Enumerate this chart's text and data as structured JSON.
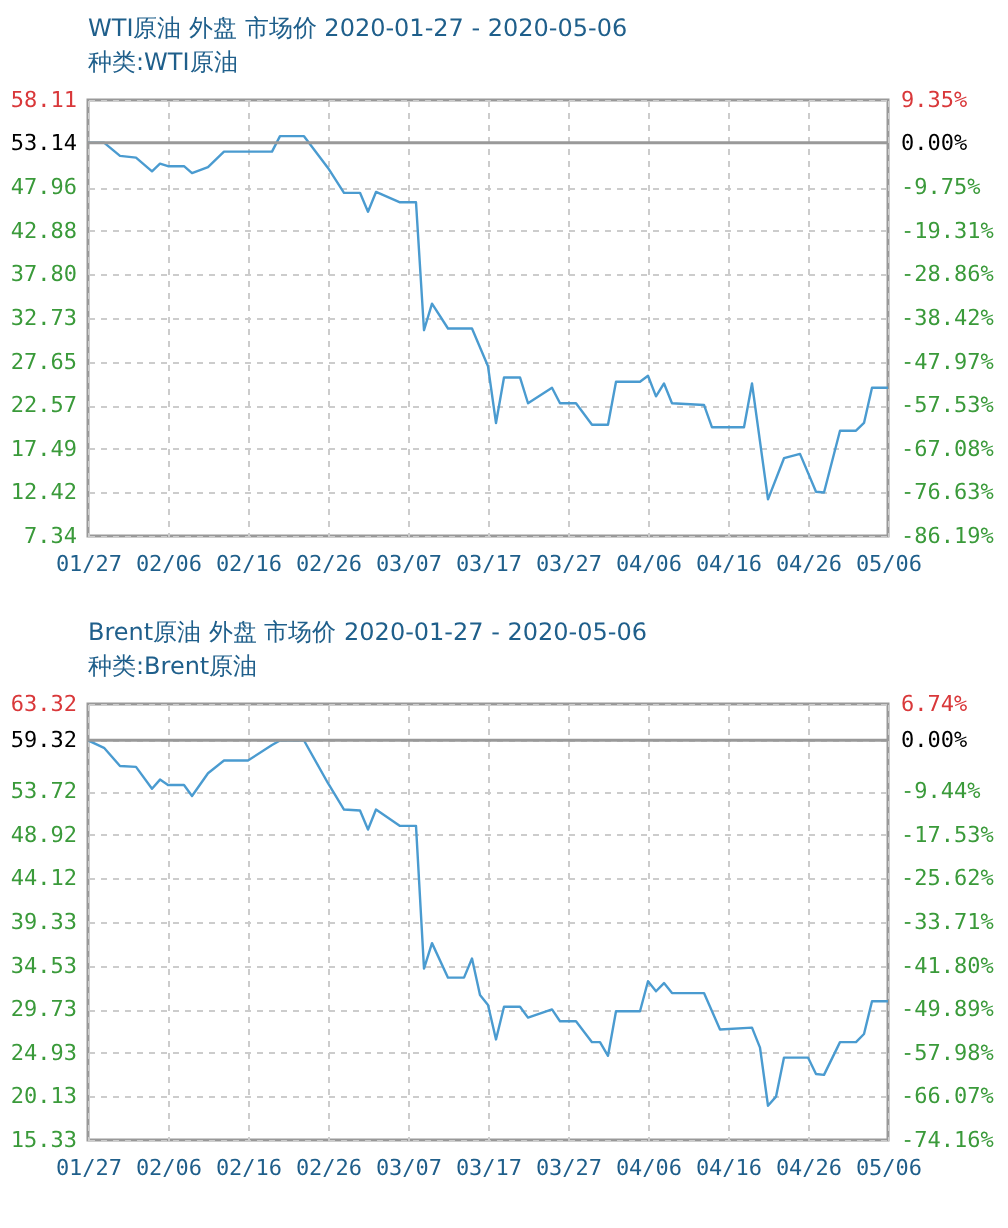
{
  "chart_data": [
    {
      "type": "line",
      "title": "WTI原油 外盘 市场价 2020-01-27 - 2020-05-06",
      "subtitle": "种类:WTI原油",
      "x": [
        "2020-01-27",
        "2020-01-29",
        "2020-01-31",
        "2020-02-02",
        "2020-02-04",
        "2020-02-05",
        "2020-02-06",
        "2020-02-08",
        "2020-02-09",
        "2020-02-11",
        "2020-02-13",
        "2020-02-19",
        "2020-02-20",
        "2020-02-23",
        "2020-02-26",
        "2020-02-28",
        "2020-03-01",
        "2020-03-02",
        "2020-03-03",
        "2020-03-06",
        "2020-03-08",
        "2020-03-09",
        "2020-03-10",
        "2020-03-12",
        "2020-03-15",
        "2020-03-17",
        "2020-03-18",
        "2020-03-19",
        "2020-03-21",
        "2020-03-22",
        "2020-03-25",
        "2020-03-26",
        "2020-03-28",
        "2020-03-30",
        "2020-04-01",
        "2020-04-02",
        "2020-04-05",
        "2020-04-06",
        "2020-04-07",
        "2020-04-08",
        "2020-04-09",
        "2020-04-13",
        "2020-04-14",
        "2020-04-18",
        "2020-04-19",
        "2020-04-21",
        "2020-04-23",
        "2020-04-25",
        "2020-04-27",
        "2020-04-28",
        "2020-04-30",
        "2020-05-02",
        "2020-05-03",
        "2020-05-04",
        "2020-05-06"
      ],
      "series": [
        {
          "color": "#4a9bd0",
          "values": [
            53.14,
            53.14,
            51.6,
            51.4,
            49.8,
            50.7,
            50.4,
            50.4,
            49.6,
            50.3,
            52.1,
            52.1,
            53.9,
            53.9,
            50.2,
            47.3,
            47.3,
            45.1,
            47.4,
            46.2,
            46.2,
            31.3,
            34.4,
            31.5,
            31.5,
            27.1,
            20.5,
            25.8,
            25.8,
            22.8,
            24.6,
            22.8,
            22.8,
            20.3,
            20.3,
            25.3,
            25.3,
            26.0,
            23.6,
            25.1,
            22.8,
            22.6,
            20.0,
            20.0,
            25.1,
            11.6,
            16.4,
            16.9,
            12.5,
            12.4,
            19.6,
            19.6,
            20.5,
            24.6,
            24.6
          ]
        }
      ],
      "xlim": [
        "2020-01-27",
        "2020-05-06"
      ],
      "xticks": [
        {
          "value": "2020-01-27",
          "label": "01/27"
        },
        {
          "value": "2020-02-06",
          "label": "02/06"
        },
        {
          "value": "2020-02-16",
          "label": "02/16"
        },
        {
          "value": "2020-02-26",
          "label": "02/26"
        },
        {
          "value": "2020-03-07",
          "label": "03/07"
        },
        {
          "value": "2020-03-17",
          "label": "03/17"
        },
        {
          "value": "2020-03-27",
          "label": "03/27"
        },
        {
          "value": "2020-04-06",
          "label": "04/06"
        },
        {
          "value": "2020-04-16",
          "label": "04/16"
        },
        {
          "value": "2020-04-26",
          "label": "04/26"
        },
        {
          "value": "2020-05-06",
          "label": "05/06"
        }
      ],
      "ylim": [
        7.34,
        58.11
      ],
      "yticks": [
        7.34,
        12.42,
        17.49,
        22.57,
        27.65,
        32.73,
        {
          "value": 37.8,
          "label": "37.80"
        },
        42.88,
        47.96,
        53.14,
        58.11
      ],
      "y2lim": [
        -86.19,
        9.35
      ],
      "y2ticks": [
        {
          "value": -86.19,
          "label": "-86.19%"
        },
        {
          "value": -76.63,
          "label": "-76.63%"
        },
        {
          "value": -67.08,
          "label": "-67.08%"
        },
        {
          "value": -57.53,
          "label": "-57.53%"
        },
        {
          "value": -47.97,
          "label": "-47.97%"
        },
        {
          "value": -38.42,
          "label": "-38.42%"
        },
        {
          "value": -28.86,
          "label": "-28.86%"
        },
        {
          "value": -19.31,
          "label": "-19.31%"
        },
        {
          "value": -9.75,
          "label": "-9.75%"
        },
        {
          "value": 0,
          "label": "0.00%"
        },
        {
          "value": 9.35,
          "label": "9.35%"
        }
      ],
      "ref_lines": [
        {
          "axis": "y",
          "value": 53.14,
          "color": "#999999"
        }
      ],
      "grid": true,
      "legend": false
    },
    {
      "type": "line",
      "title": "Brent原油 外盘 市场价 2020-01-27 - 2020-05-06",
      "subtitle": "种类:Brent原油",
      "x": [
        "2020-01-27",
        "2020-01-29",
        "2020-01-31",
        "2020-02-02",
        "2020-02-04",
        "2020-02-05",
        "2020-02-06",
        "2020-02-08",
        "2020-02-09",
        "2020-02-11",
        "2020-02-13",
        "2020-02-16",
        "2020-02-19",
        "2020-02-20",
        "2020-02-23",
        "2020-02-26",
        "2020-02-28",
        "2020-03-01",
        "2020-03-02",
        "2020-03-03",
        "2020-03-06",
        "2020-03-08",
        "2020-03-09",
        "2020-03-10",
        "2020-03-12",
        "2020-03-14",
        "2020-03-15",
        "2020-03-16",
        "2020-03-17",
        "2020-03-18",
        "2020-03-19",
        "2020-03-21",
        "2020-03-22",
        "2020-03-25",
        "2020-03-26",
        "2020-03-28",
        "2020-03-30",
        "2020-03-31",
        "2020-04-01",
        "2020-04-02",
        "2020-04-05",
        "2020-04-06",
        "2020-04-07",
        "2020-04-08",
        "2020-04-09",
        "2020-04-13",
        "2020-04-15",
        "2020-04-19",
        "2020-04-20",
        "2020-04-21",
        "2020-04-22",
        "2020-04-23",
        "2020-04-26",
        "2020-04-27",
        "2020-04-28",
        "2020-04-30",
        "2020-05-02",
        "2020-05-03",
        "2020-05-04",
        "2020-05-06"
      ],
      "series": [
        {
          "color": "#4a9bd0",
          "values": [
            59.32,
            58.5,
            56.5,
            56.4,
            54.0,
            55.0,
            54.4,
            54.4,
            53.2,
            55.7,
            57.1,
            57.1,
            58.8,
            59.3,
            59.3,
            54.6,
            51.7,
            51.6,
            49.5,
            51.7,
            49.9,
            49.9,
            34.2,
            37.0,
            33.2,
            33.2,
            35.3,
            31.3,
            30.2,
            26.4,
            30.0,
            30.0,
            28.8,
            29.7,
            28.4,
            28.4,
            26.1,
            26.1,
            24.6,
            29.5,
            29.5,
            32.8,
            31.7,
            32.6,
            31.5,
            31.5,
            27.5,
            27.7,
            25.5,
            19.1,
            20.1,
            24.4,
            24.4,
            22.6,
            22.5,
            26.1,
            26.1,
            27.0,
            30.6,
            30.6
          ]
        }
      ],
      "xlim": [
        "2020-01-27",
        "2020-05-06"
      ],
      "xticks": [
        {
          "value": "2020-01-27",
          "label": "01/27"
        },
        {
          "value": "2020-02-06",
          "label": "02/06"
        },
        {
          "value": "2020-02-16",
          "label": "02/16"
        },
        {
          "value": "2020-02-26",
          "label": "02/26"
        },
        {
          "value": "2020-03-07",
          "label": "03/07"
        },
        {
          "value": "2020-03-17",
          "label": "03/17"
        },
        {
          "value": "2020-03-27",
          "label": "03/27"
        },
        {
          "value": "2020-04-06",
          "label": "04/06"
        },
        {
          "value": "2020-04-16",
          "label": "04/16"
        },
        {
          "value": "2020-04-26",
          "label": "04/26"
        },
        {
          "value": "2020-05-06",
          "label": "05/06"
        }
      ],
      "ylim": [
        15.33,
        63.32
      ],
      "yticks": [
        15.33,
        20.13,
        24.93,
        29.73,
        34.53,
        39.33,
        44.12,
        48.92,
        53.72,
        59.32,
        63.32
      ],
      "y2lim": [
        -74.16,
        6.74
      ],
      "y2ticks": [
        {
          "value": -74.16,
          "label": "-74.16%"
        },
        {
          "value": -66.07,
          "label": "-66.07%"
        },
        {
          "value": -57.98,
          "label": "-57.98%"
        },
        {
          "value": -49.89,
          "label": "-49.89%"
        },
        {
          "value": -41.8,
          "label": "-41.80%"
        },
        {
          "value": -33.71,
          "label": "-33.71%"
        },
        {
          "value": -25.62,
          "label": "-25.62%"
        },
        {
          "value": -17.53,
          "label": "-17.53%"
        },
        {
          "value": -9.44,
          "label": "-9.44%"
        },
        {
          "value": 0,
          "label": "0.00%"
        },
        {
          "value": 6.74,
          "label": "6.74%"
        }
      ],
      "ref_lines": [
        {
          "axis": "y",
          "value": 59.32,
          "color": "#999999"
        }
      ],
      "grid": true,
      "legend": false
    }
  ]
}
